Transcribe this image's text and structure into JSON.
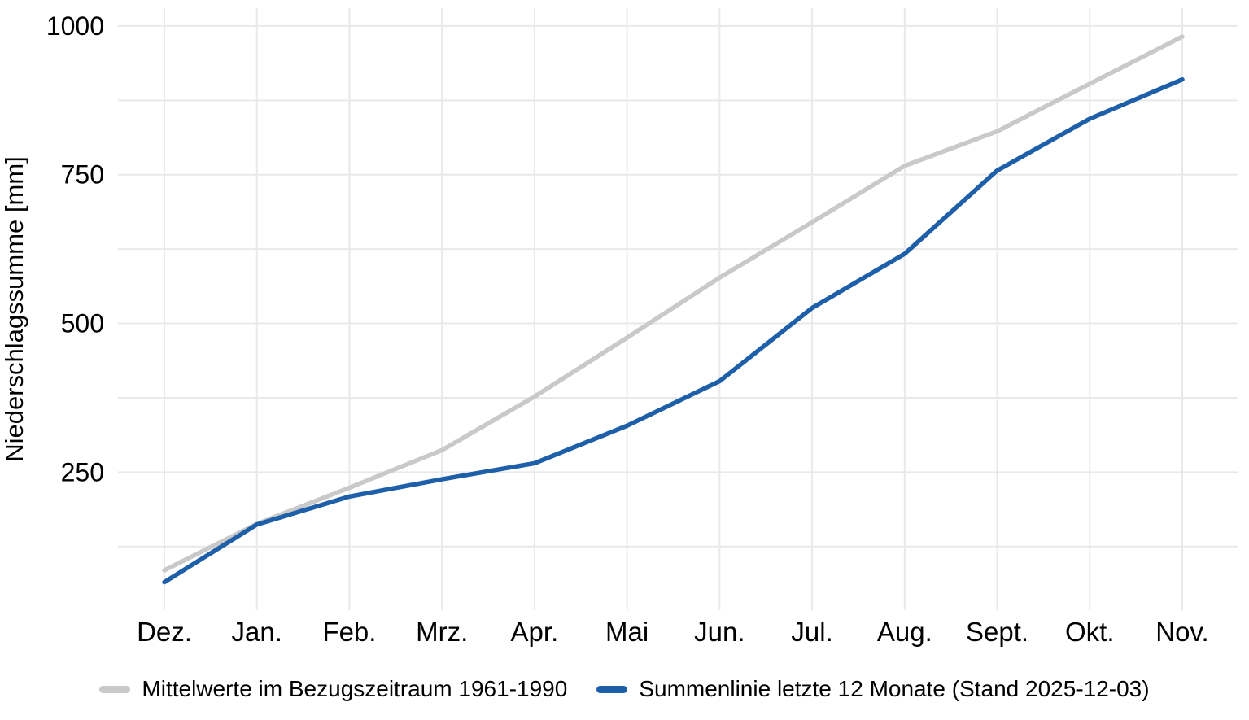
{
  "chart_data": {
    "type": "line",
    "title": "",
    "xlabel": "",
    "ylabel": "Niederschlagssumme [mm]",
    "categories": [
      "Dez.",
      "Jan.",
      "Feb.",
      "Mrz.",
      "Apr.",
      "Mai",
      "Jun.",
      "Jul.",
      "Aug.",
      "Sept.",
      "Okt.",
      "Nov."
    ],
    "series": [
      {
        "name": "Mittelwerte im Bezugszeitraum 1961-1990",
        "color": "#c9c9c9",
        "values": [
          85,
          163,
          224,
          287,
          377,
          476,
          577,
          670,
          765,
          823,
          903,
          982
        ]
      },
      {
        "name": "Summenlinie letzte 12 Monate (Stand 2025-12-03)",
        "color": "#1e5fa9",
        "values": [
          65,
          162,
          209,
          238,
          265,
          328,
          403,
          526,
          617,
          757,
          844,
          910
        ]
      }
    ],
    "yticks": [
      250,
      500,
      750,
      1000
    ],
    "minor_yticks": [
      125,
      375,
      625,
      875
    ],
    "ylim": [
      18,
      1030
    ],
    "grid": true,
    "grid_color": "#e9e9e9",
    "background_color": "#ffffff",
    "text_color": "#000000",
    "legend_position": "bottom"
  }
}
